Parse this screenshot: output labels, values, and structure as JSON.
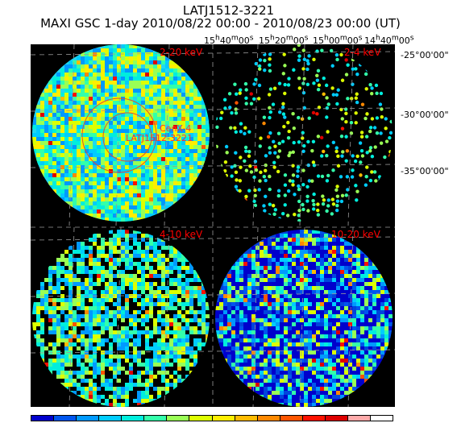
{
  "title": "LATJ1512-3221",
  "subtitle": "MAXI GSC 1-day 2010/08/22 00:00 - 2010/08/23 00:00 (UT)",
  "ra_ticks": [
    "15h40m00s",
    "15h20m00s",
    "15h00m00s",
    "14h40m00s"
  ],
  "dec_ticks": [
    "-25°00'00\"",
    "-30°00'00\"",
    "-35°00'00\""
  ],
  "panels": [
    {
      "band": "2-20 keV"
    },
    {
      "band": "2-4 keV"
    },
    {
      "band": "4-10 keV"
    },
    {
      "band": "10-20 keV"
    }
  ],
  "sources": {
    "cenx4": "CenX-4",
    "target": "LATJ1512-3221"
  },
  "colors": {
    "band_label": "#ff0000",
    "background": "#000000",
    "grid": "#9a9a9a",
    "circles": "#e05030"
  },
  "colorbar": [
    "#0000cc",
    "#0055ee",
    "#0099ff",
    "#00ccff",
    "#00eedd",
    "#33ffaa",
    "#99ff55",
    "#ddff00",
    "#ffee00",
    "#ffbb00",
    "#ff8800",
    "#ff5500",
    "#ff1100",
    "#dd0000",
    "#ffaaaa",
    "#ffffff"
  ]
}
